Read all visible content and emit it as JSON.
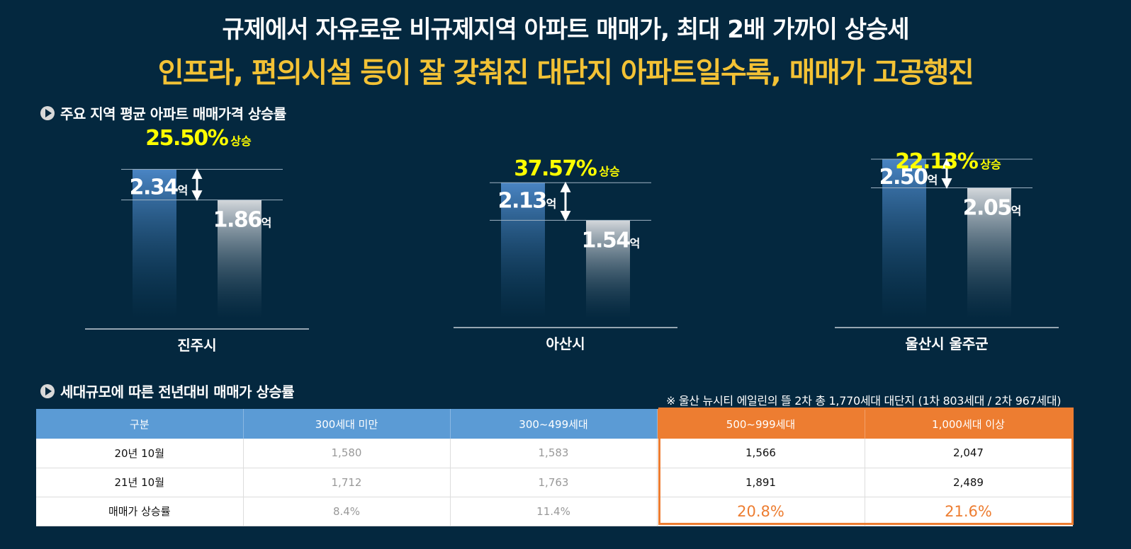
{
  "titles": {
    "line1": "규제에서 자유로운 비규제지역 아파트 매매가, 최대 2배 가까이 상승세",
    "line2": "인프라, 편의시설 등이 잘 갖춰진 대단지 아파트일수록, 매매가 고공행진"
  },
  "section1": {
    "label": "주요 지역 평균 아파트 매매가격 상승률"
  },
  "section2": {
    "label": "세대규모에 따른 전년대비 매매가 상승률"
  },
  "note": "※ 울산 뉴시티 에일린의 뜰 2차 총 1,770세대 대단지 (1차 803세대 / 2차 967세대)",
  "colors": {
    "background": "#04283f",
    "title_highlight": "#f3c235",
    "rate_label": "#ffff00",
    "bar_current": "#4a85c4",
    "bar_previous": "#c9cfd5",
    "table_header": "#5b9bd5",
    "table_highlight": "#ed7d31"
  },
  "chart_data": {
    "type": "bar",
    "unit": "억",
    "rise_word": "상승",
    "groups": [
      {
        "region": "진주시",
        "current": 2.34,
        "current_label": "2.34",
        "previous": 1.86,
        "previous_label": "1.86",
        "rate": "25.50%"
      },
      {
        "region": "아산시",
        "current": 2.13,
        "current_label": "2.13",
        "previous": 1.54,
        "previous_label": "1.54",
        "rate": "37.57%"
      },
      {
        "region": "울산시 울주군",
        "current": 2.5,
        "current_label": "2.50",
        "previous": 2.05,
        "previous_label": "2.05",
        "rate": "22.13%"
      }
    ]
  },
  "table": {
    "headers": [
      "구분",
      "300세대 미만",
      "300~499세대",
      "500~999세대",
      "1,000세대 이상"
    ],
    "rows": [
      [
        "20년 10월",
        "1,580",
        "1,583",
        "1,566",
        "2,047"
      ],
      [
        "21년 10월",
        "1,712",
        "1,763",
        "1,891",
        "2,489"
      ],
      [
        "매매가 상승률",
        "8.4%",
        "11.4%",
        "20.8%",
        "21.6%"
      ]
    ]
  }
}
